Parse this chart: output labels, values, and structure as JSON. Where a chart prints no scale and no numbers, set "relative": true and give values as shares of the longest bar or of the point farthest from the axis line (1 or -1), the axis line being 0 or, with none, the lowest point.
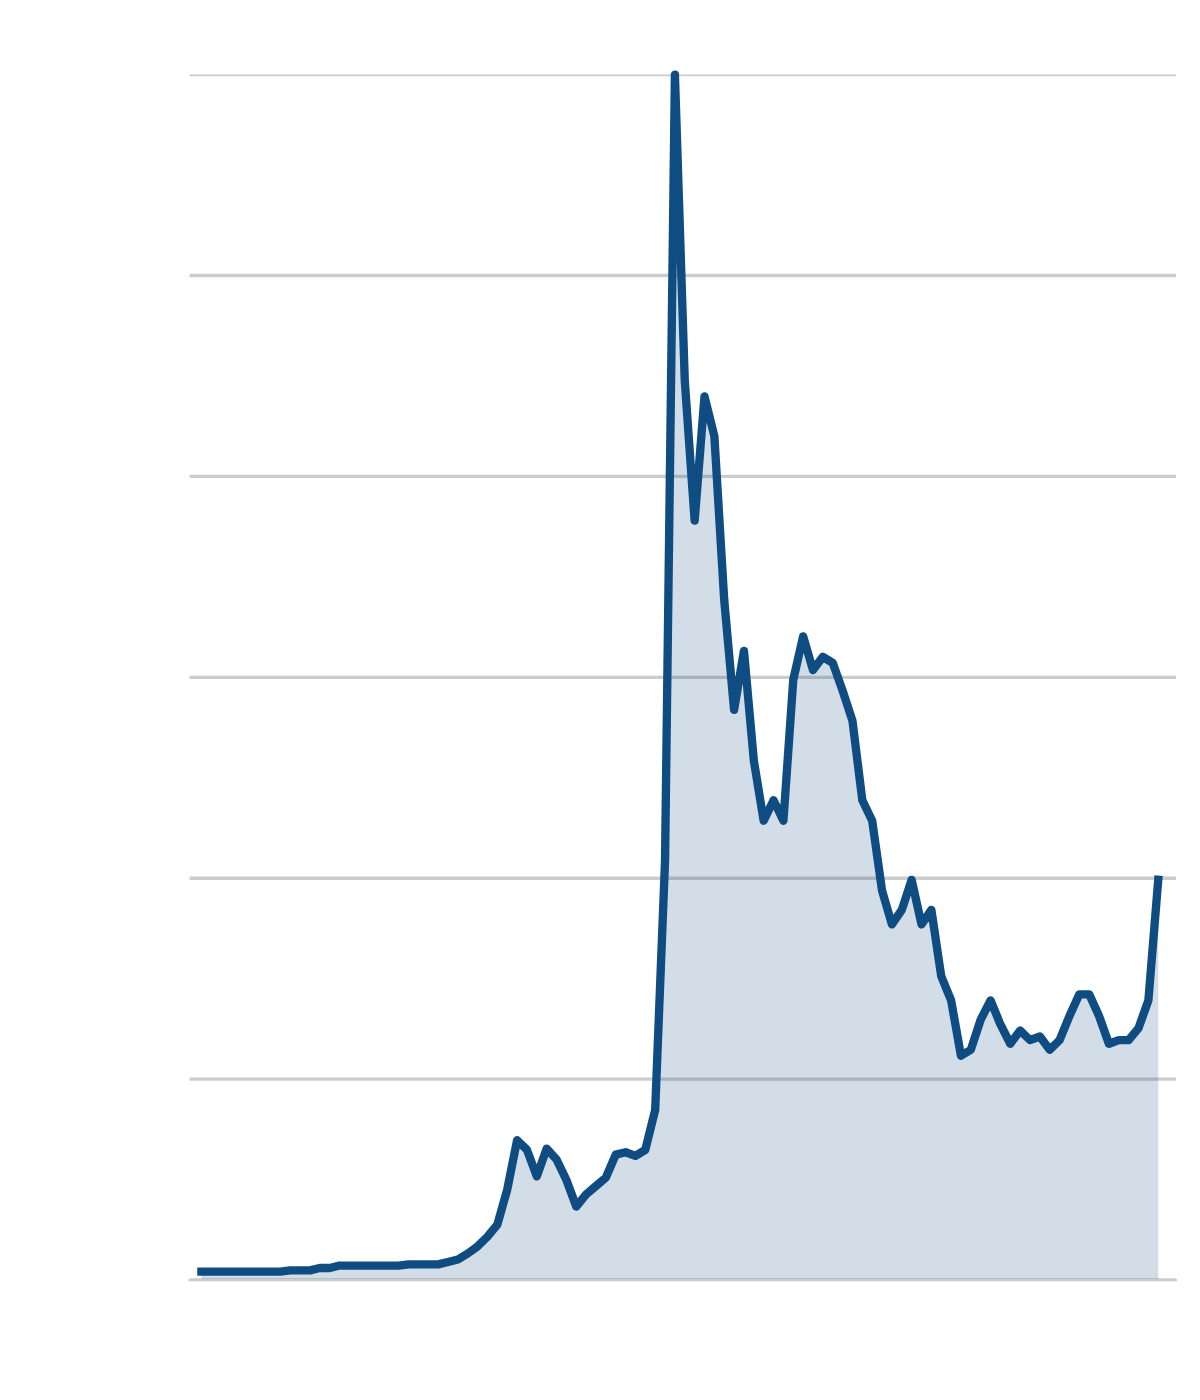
{
  "chart_data": {
    "type": "area",
    "relative": true,
    "grid": "y",
    "color": "#0e4c82",
    "categories": [
      null,
      null,
      null,
      null,
      null,
      null,
      null,
      null,
      null,
      null,
      null,
      null,
      null,
      null,
      null,
      null,
      null,
      null,
      null,
      null,
      null,
      null,
      null,
      null,
      null,
      null,
      null,
      null,
      null,
      null,
      null,
      null,
      null,
      null,
      null,
      null,
      null,
      null,
      null,
      null,
      null,
      null,
      null,
      null,
      null,
      null,
      null,
      null,
      null,
      null,
      null,
      null,
      null,
      null,
      null,
      null,
      null,
      null,
      null,
      null,
      null,
      null,
      null,
      null,
      null,
      null,
      null,
      null,
      null,
      null,
      null,
      null,
      null,
      null,
      null,
      null,
      null,
      null,
      null,
      null,
      null,
      null,
      null,
      null,
      null,
      null,
      null,
      null,
      null,
      null,
      null,
      null,
      null,
      null,
      null,
      null,
      null,
      null
    ],
    "values": [
      0.007,
      0.007,
      0.007,
      0.007,
      0.007,
      0.007,
      0.007,
      0.007,
      0.007,
      0.008,
      0.008,
      0.008,
      0.01,
      0.01,
      0.012,
      0.012,
      0.012,
      0.012,
      0.012,
      0.012,
      0.012,
      0.013,
      0.013,
      0.013,
      0.013,
      0.015,
      0.017,
      0.022,
      0.028,
      0.036,
      0.046,
      0.075,
      0.116,
      0.108,
      0.086,
      0.109,
      0.1,
      0.083,
      0.061,
      0.071,
      0.078,
      0.085,
      0.104,
      0.106,
      0.103,
      0.108,
      0.141,
      0.348,
      1,
      0.746,
      0.63,
      0.733,
      0.7,
      0.564,
      0.473,
      0.522,
      0.431,
      0.381,
      0.398,
      0.381,
      0.498,
      0.534,
      0.506,
      0.517,
      0.512,
      0.489,
      0.464,
      0.398,
      0.381,
      0.323,
      0.295,
      0.307,
      0.332,
      0.295,
      0.307,
      0.252,
      0.232,
      0.186,
      0.191,
      0.216,
      0.232,
      0.212,
      0.196,
      0.207,
      0.199,
      0.202,
      0.191,
      0.199,
      0.219,
      0.237,
      0.237,
      0.219,
      0.196,
      0.199,
      0.199,
      0.209,
      0.232,
      0.332
    ]
  }
}
